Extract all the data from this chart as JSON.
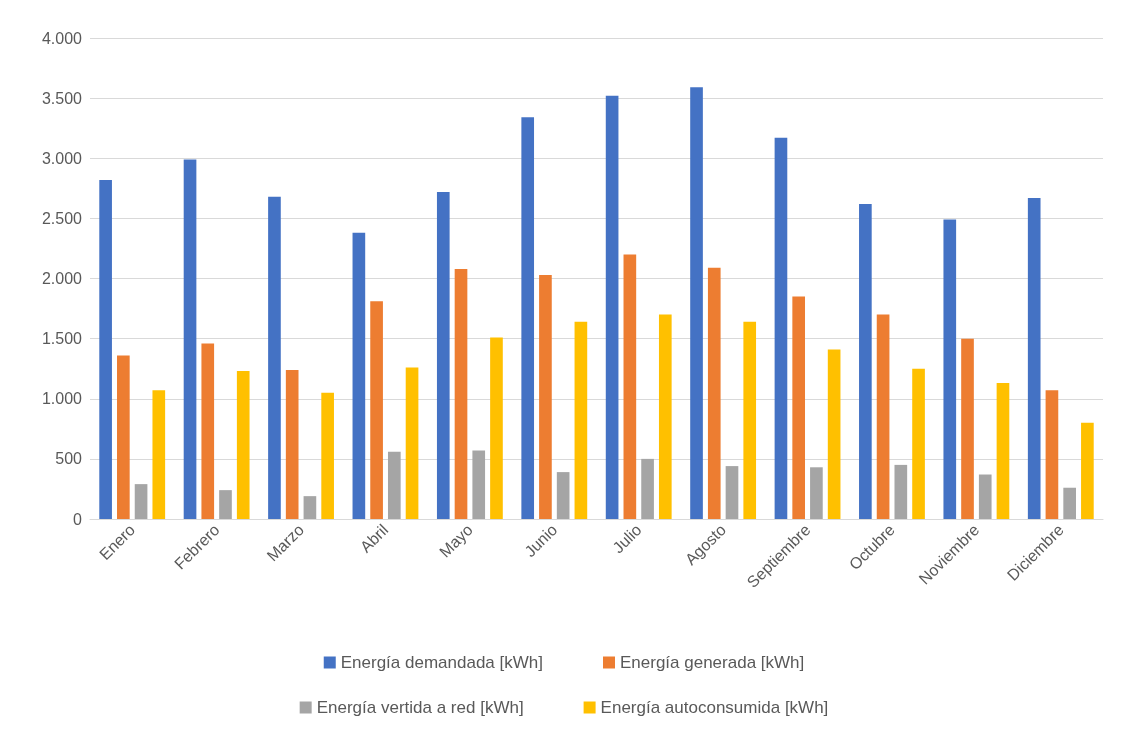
{
  "chart_data": {
    "type": "bar",
    "categories": [
      "Enero",
      "Febrero",
      "Marzo",
      "Abril",
      "Mayo",
      "Junio",
      "Julio",
      "Agosto",
      "Septiembre",
      "Octubre",
      "Noviembre",
      "Diciembre"
    ],
    "series": [
      {
        "name": "Energía demandada [kWh]",
        "color": "#4472c4",
        "values": [
          2820,
          2990,
          2680,
          2380,
          2720,
          3340,
          3520,
          3590,
          3170,
          2620,
          2490,
          2670
        ]
      },
      {
        "name": "Energía generada [kWh]",
        "color": "#ed7d31",
        "values": [
          1360,
          1460,
          1240,
          1810,
          2080,
          2030,
          2200,
          2090,
          1850,
          1700,
          1500,
          1070
        ]
      },
      {
        "name": "Energía vertida a red [kWh]",
        "color": "#a5a5a5",
        "values": [
          290,
          240,
          190,
          560,
          570,
          390,
          500,
          440,
          430,
          450,
          370,
          260
        ]
      },
      {
        "name": "Energía autoconsumida [kWh]",
        "color": "#ffc000",
        "values": [
          1070,
          1230,
          1050,
          1260,
          1510,
          1640,
          1700,
          1640,
          1410,
          1250,
          1130,
          800
        ]
      }
    ],
    "ylim": [
      0,
      4000
    ],
    "yticks": [
      0,
      {
        "value": 500,
        "label": "500"
      },
      {
        "value": 1000,
        "label": "1.000"
      },
      {
        "value": 1500,
        "label": "1.500"
      },
      {
        "value": 2000,
        "label": "2.000"
      },
      {
        "value": 2500,
        "label": "2.500"
      },
      {
        "value": 3000,
        "label": "3.000"
      },
      {
        "value": 3500,
        "label": "3.500"
      },
      {
        "value": 4000,
        "label": "4.000"
      }
    ],
    "grid": "y",
    "legend": "bottom"
  }
}
